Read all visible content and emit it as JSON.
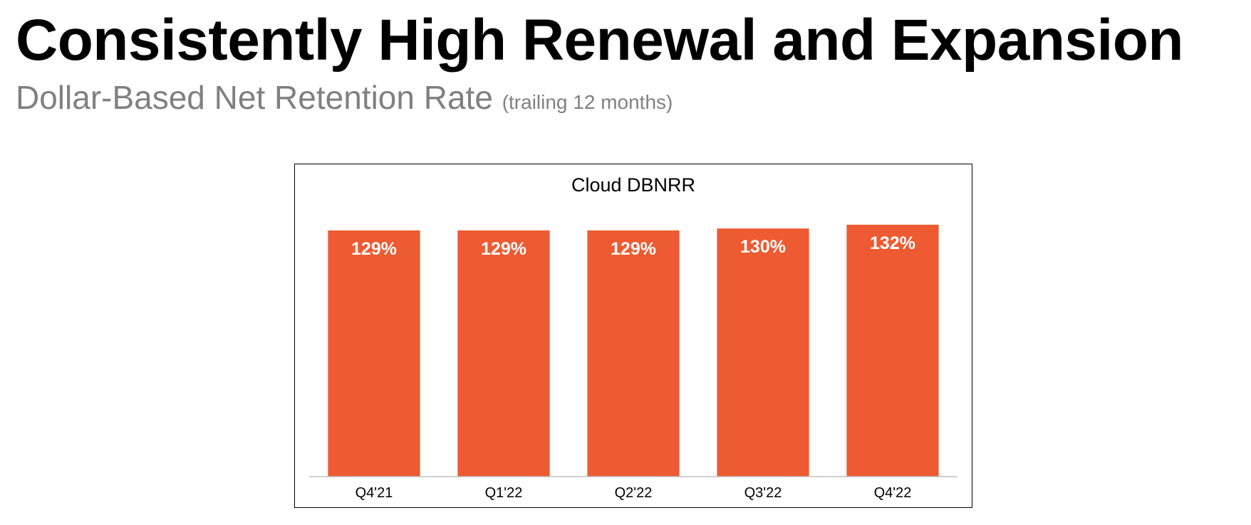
{
  "page": {
    "title": "Consistently High Renewal and Expansion",
    "subtitle": "Dollar-Based Net Retention Rate",
    "subtitle_note": "(trailing 12 months)"
  },
  "colors": {
    "bar": "#EE5A31",
    "bar_label": "#ffffff",
    "axis": "#bfbfbf",
    "title_text": "#000000",
    "subtitle_text": "#808080"
  },
  "chart_data": {
    "type": "bar",
    "title": "Cloud DBNRR",
    "categories": [
      "Q4'21",
      "Q1'22",
      "Q2'22",
      "Q3'22",
      "Q4'22"
    ],
    "values": [
      129,
      129,
      129,
      130,
      132
    ],
    "value_labels": [
      "129%",
      "129%",
      "129%",
      "130%",
      "132%"
    ],
    "ylim": [
      0,
      145
    ],
    "grid": false,
    "legend": "none",
    "xlabel": "",
    "ylabel": ""
  }
}
